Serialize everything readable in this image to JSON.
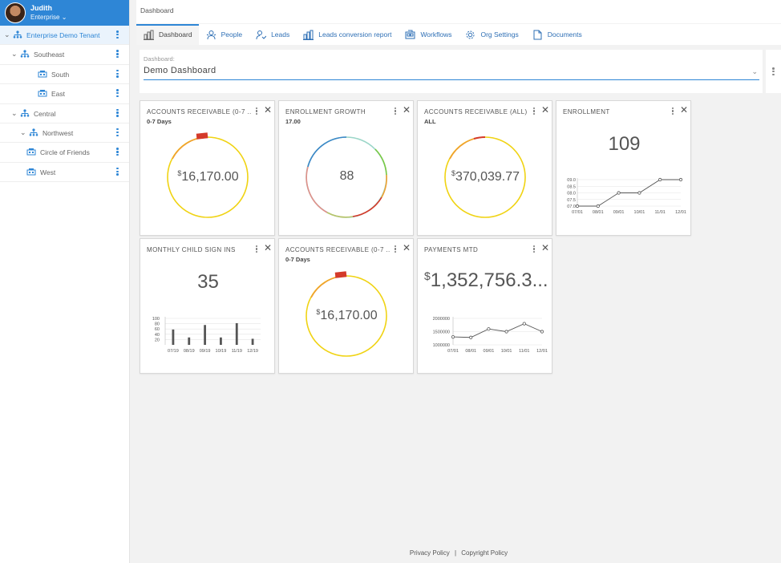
{
  "user": {
    "name": "Judith",
    "role": "Enterprise"
  },
  "tree": [
    {
      "label": "Enterprise Demo Tenant",
      "level": 0,
      "expanded": true,
      "selected": true
    },
    {
      "label": "Southeast",
      "level": 1,
      "expanded": true
    },
    {
      "label": "South",
      "level": 2
    },
    {
      "label": "East",
      "level": 2
    },
    {
      "label": "Central",
      "level": 1,
      "expanded": true
    },
    {
      "label": "Northwest",
      "level": 2,
      "expanded": true
    },
    {
      "label": "Circle of Friends",
      "level": 3
    },
    {
      "label": "West",
      "level": 3
    }
  ],
  "breadcrumb": "Dashboard",
  "tabs": [
    {
      "label": "Dashboard",
      "icon": "bar-chart-icon",
      "active": true
    },
    {
      "label": "People",
      "icon": "people-icon"
    },
    {
      "label": "Leads",
      "icon": "leads-icon"
    },
    {
      "label": "Leads conversion report",
      "icon": "bar-chart-icon"
    },
    {
      "label": "Workflows",
      "icon": "workflow-icon"
    },
    {
      "label": "Org Settings",
      "icon": "gear-icon"
    },
    {
      "label": "Documents",
      "icon": "document-icon"
    }
  ],
  "dashboard_select": {
    "label": "Dashboard:",
    "value": "Demo Dashboard"
  },
  "widgets": {
    "ar_0_7": {
      "title": "ACCOUNTS RECEIVABLE (0-7 ...",
      "subtitle": "0-7 Days",
      "currency": "$",
      "value": "16,170.00"
    },
    "enrollment_growth": {
      "title": "ENROLLMENT GROWTH",
      "subtitle": "17.00",
      "value": "88"
    },
    "ar_all": {
      "title": "ACCOUNTS RECEIVABLE (ALL)",
      "subtitle": "ALL",
      "currency": "$",
      "value": "370,039.77"
    },
    "enrollment": {
      "title": "ENROLLMENT",
      "value": "109"
    },
    "monthly_signins": {
      "title": "MONTHLY CHILD SIGN INS",
      "value": "35"
    },
    "ar_0_7_b": {
      "title": "ACCOUNTS RECEIVABLE (0-7 ...",
      "subtitle": "0-7 Days",
      "currency": "$",
      "value": "16,170.00"
    },
    "payments_mtd": {
      "title": "PAYMENTS MTD",
      "currency": "$",
      "value": "1,352,756.3..."
    }
  },
  "chart_data": [
    {
      "type": "line",
      "x": [
        "07/01",
        "08/01",
        "09/01",
        "10/01",
        "11/01",
        "12/01"
      ],
      "values": [
        7.0,
        7.0,
        8.0,
        8.0,
        9.0,
        9.0
      ],
      "yticks": [
        "07.0",
        "07.5",
        "08.0",
        "08.5",
        "09.0"
      ],
      "ylim": [
        7.0,
        9.0
      ]
    },
    {
      "type": "bar",
      "x": [
        "07/19",
        "08/19",
        "09/19",
        "10/19",
        "11/19",
        "12/19"
      ],
      "values": [
        58,
        28,
        75,
        28,
        82,
        23
      ],
      "yticks": [
        "20",
        "40",
        "60",
        "80",
        "100"
      ],
      "ylim": [
        0,
        100
      ]
    },
    {
      "type": "line",
      "x": [
        "07/01",
        "08/01",
        "09/01",
        "10/01",
        "11/01",
        "12/01"
      ],
      "values": [
        1300000,
        1280000,
        1600000,
        1500000,
        1800000,
        1500000
      ],
      "yticks": [
        "1000000",
        "1500000",
        "2000000"
      ],
      "ylim": [
        1000000,
        2000000
      ]
    }
  ],
  "footer": {
    "privacy": "Privacy Policy",
    "separator": "|",
    "copyright": "Copyright Policy"
  }
}
